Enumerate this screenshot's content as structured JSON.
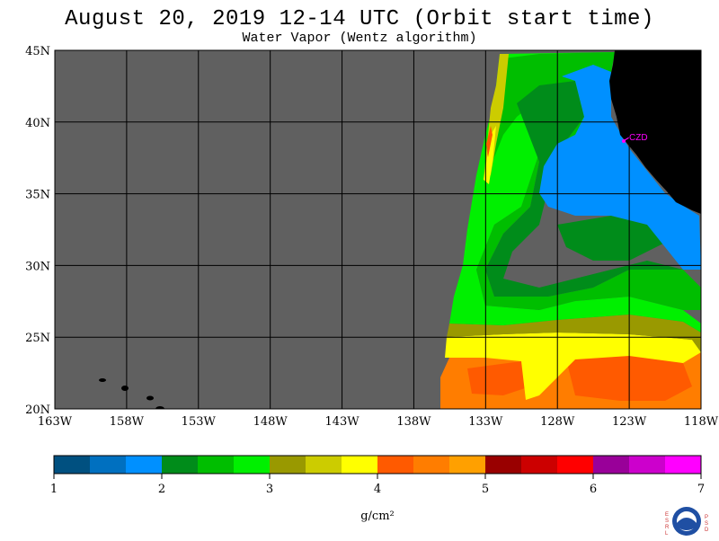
{
  "title": "August 20, 2019  12-14 UTC  (Orbit start time)",
  "subtitle": "Water Vapor (Wentz algorithm)",
  "colors": {
    "background": "#ffffff",
    "nodata": "#606060",
    "land": "#000000",
    "grid": "#000000",
    "station": "#ff00ff"
  },
  "station": {
    "label": "CZD"
  },
  "map": {
    "lon_range": [
      -163,
      -118
    ],
    "lat_range": [
      20,
      45
    ],
    "lon_ticks": [
      "163W",
      "158W",
      "153W",
      "148W",
      "143W",
      "138W",
      "133W",
      "128W",
      "123W",
      "118W"
    ],
    "lat_ticks": [
      "45N",
      "40N",
      "35N",
      "30N",
      "25N",
      "20N"
    ]
  },
  "colorbar": {
    "unit": "g/cm²",
    "ticks": [
      "1",
      "2",
      "3",
      "4",
      "5",
      "6",
      "7"
    ],
    "colors": [
      "#005080",
      "#0070c0",
      "#0090ff",
      "#008c1a",
      "#00be00",
      "#00f000",
      "#999900",
      "#cccc00",
      "#ffff00",
      "#ff5a00",
      "#ff7d00",
      "#ffa000",
      "#990000",
      "#cc0000",
      "#ff0000",
      "#990099",
      "#cc00cc",
      "#ff00ff"
    ]
  },
  "logo": {
    "left_text": "ESRL",
    "right_text": "PSD",
    "center_text": "NOAA"
  }
}
